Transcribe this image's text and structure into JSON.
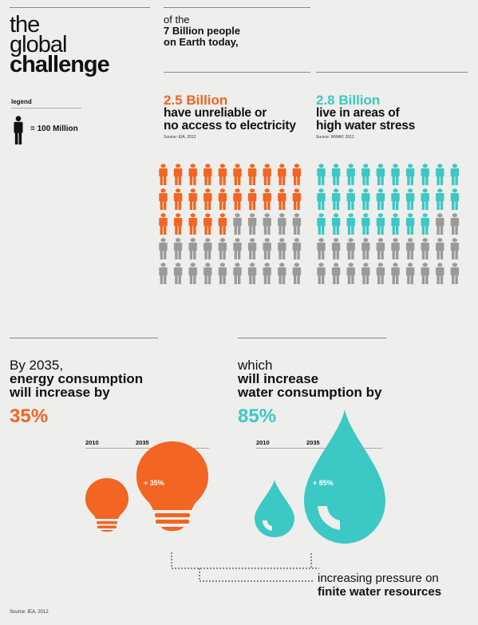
{
  "title": {
    "line1": "the",
    "line2": "global",
    "line3": "challenge"
  },
  "legend": {
    "label": "legend",
    "value": "= 100 Million"
  },
  "intro": {
    "line1": "of the",
    "line2": "7 Billion people",
    "line3": "on Earth today,"
  },
  "stat_electricity": {
    "number": "2.5 Billion",
    "line1": "have unreliable or",
    "line2": "no access to electricity",
    "source": "Source: EIA, 2012",
    "count": 25
  },
  "stat_water": {
    "number": "2.8 Billion",
    "line1": "live in areas of",
    "line2": "high water stress",
    "source": "Source: WWAP, 2012",
    "count": 28
  },
  "energy": {
    "line1": "By 2035,",
    "line2": "energy consumption",
    "line3": "will increase by",
    "percent": "35%",
    "year1": "2010",
    "year2": "2035",
    "increase": "+ 35%"
  },
  "water": {
    "line1": "which",
    "line2": "will increase",
    "line3": "water consumption by",
    "percent": "85%",
    "year1": "2010",
    "year2": "2035",
    "increase": "+ 85%"
  },
  "footer": {
    "line1": "increasing pressure on",
    "line2": "finite water resources"
  },
  "source_footer": "Source: IEA, 2012",
  "colors": {
    "orange": "#f26522",
    "teal": "#3cc8c4",
    "gray": "#9a9a9a",
    "background": "#eeeeec"
  },
  "icons": {
    "person": "person-icon",
    "bulb": "lightbulb-icon",
    "drop": "water-drop-icon"
  }
}
